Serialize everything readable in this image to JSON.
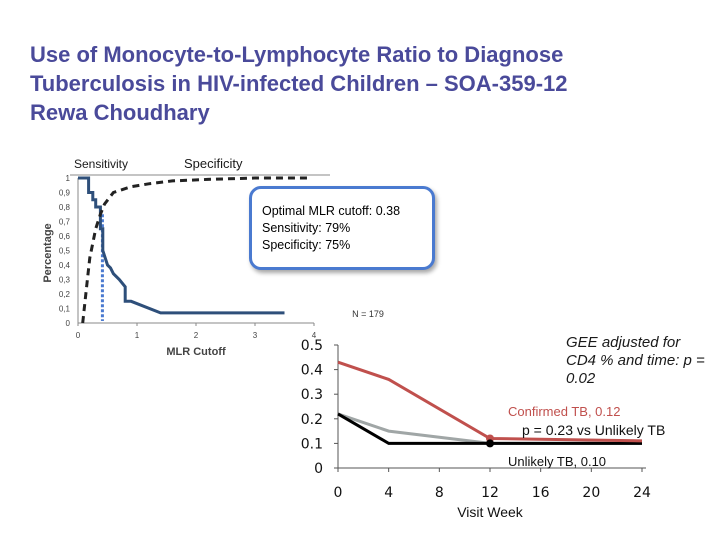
{
  "slide": {
    "title_lines": [
      "Use of Monocyte-to-Lymphocyte Ratio to Diagnose",
      "Tuberculosis in HIV-infected Children – SOA-359-12",
      "Rewa Choudhary"
    ]
  },
  "colors": {
    "title": "#4a4a9a",
    "sensitivity": "#2e4f7a",
    "specificity": "#222222",
    "callout_border": "#4a7ad0",
    "cutoff_marker": "#4a7ad0",
    "confirmed": "#c0504d",
    "gray_series": "#a0a6a6",
    "unlikely": "#000000"
  },
  "callout": {
    "line1": "Optimal MLR cutoff: 0.38",
    "line2": "Sensitivity: 79%",
    "line3": "Specificity: 75%"
  },
  "chart_data": [
    {
      "type": "line",
      "title": "",
      "xlabel": "MLR Cutoff",
      "ylabel": "Percentage",
      "xlim": [
        0,
        4
      ],
      "ylim": [
        0,
        1
      ],
      "x_ticks": [
        "0",
        "1",
        "2",
        "3",
        "4"
      ],
      "y_ticks": [
        "0",
        "0,1",
        "0,2",
        "0,3",
        "0,4",
        "0,5",
        "0,6",
        "0,7",
        "0,8",
        "0,9",
        "1"
      ],
      "legend": [
        "Sensitivity",
        "Specificity"
      ],
      "optimal_cutoff": 0.38,
      "series": [
        {
          "name": "Sensitivity",
          "style": "solid",
          "x": [
            0,
            0.18,
            0.18,
            0.25,
            0.25,
            0.3,
            0.3,
            0.38,
            0.38,
            0.42,
            0.42,
            0.5,
            0.55,
            0.6,
            0.7,
            0.8,
            0.8,
            0.9,
            1.4,
            3.5
          ],
          "y": [
            1.0,
            1.0,
            0.9,
            0.9,
            0.85,
            0.85,
            0.8,
            0.8,
            0.65,
            0.65,
            0.5,
            0.4,
            0.38,
            0.34,
            0.3,
            0.25,
            0.15,
            0.15,
            0.07,
            0.07
          ]
        },
        {
          "name": "Specificity",
          "style": "dashed",
          "x": [
            0.08,
            0.16,
            0.2,
            0.3,
            0.38,
            0.45,
            0.6,
            0.9,
            1.2,
            1.6,
            2.2,
            3.0,
            3.9
          ],
          "y": [
            0.0,
            0.3,
            0.45,
            0.65,
            0.75,
            0.82,
            0.9,
            0.94,
            0.96,
            0.98,
            0.99,
            1.0,
            1.0
          ]
        }
      ]
    },
    {
      "type": "line",
      "title": "",
      "xlabel": "Visit Week",
      "ylabel": "",
      "xlim": [
        0,
        24
      ],
      "ylim": [
        0,
        0.5
      ],
      "x_ticks": [
        "0",
        "4",
        "8",
        "12",
        "16",
        "20",
        "24"
      ],
      "y_ticks": [
        "0",
        "0.1",
        "0.2",
        "0.3",
        "0.4",
        "0.5"
      ],
      "n_label": "N = 179",
      "series": [
        {
          "name": "Confirmed TB",
          "x": [
            0,
            4,
            12,
            24
          ],
          "y": [
            0.43,
            0.36,
            0.12,
            0.11
          ]
        },
        {
          "name": "Gray series",
          "x": [
            0,
            4,
            12,
            24
          ],
          "y": [
            0.22,
            0.15,
            0.1,
            0.1
          ]
        },
        {
          "name": "Unlikely TB",
          "x": [
            0,
            4,
            12,
            24
          ],
          "y": [
            0.22,
            0.1,
            0.1,
            0.1
          ]
        }
      ],
      "annotations": {
        "gee": "GEE adjusted for CD4 % and time: p = 0.02",
        "confirmed_label": "Confirmed TB, 0.12",
        "p_vs_unlikely": "p = 0.23 vs Unlikely TB",
        "unlikely_label": "Unlikely TB, 0.10"
      }
    }
  ]
}
